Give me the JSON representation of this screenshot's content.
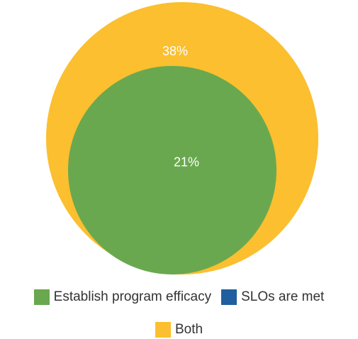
{
  "chart_data": {
    "type": "pie",
    "series": [
      {
        "name": "Establish program efficacy",
        "value": 21,
        "label": "21%",
        "color": "#6AA84F"
      },
      {
        "name": "SLOs are met",
        "value": 0,
        "label": "",
        "color": "#1F5F9F"
      },
      {
        "name": "Both",
        "value": 38,
        "label": "38%",
        "color": "#FBBF2F"
      }
    ],
    "legend_position": "bottom"
  }
}
